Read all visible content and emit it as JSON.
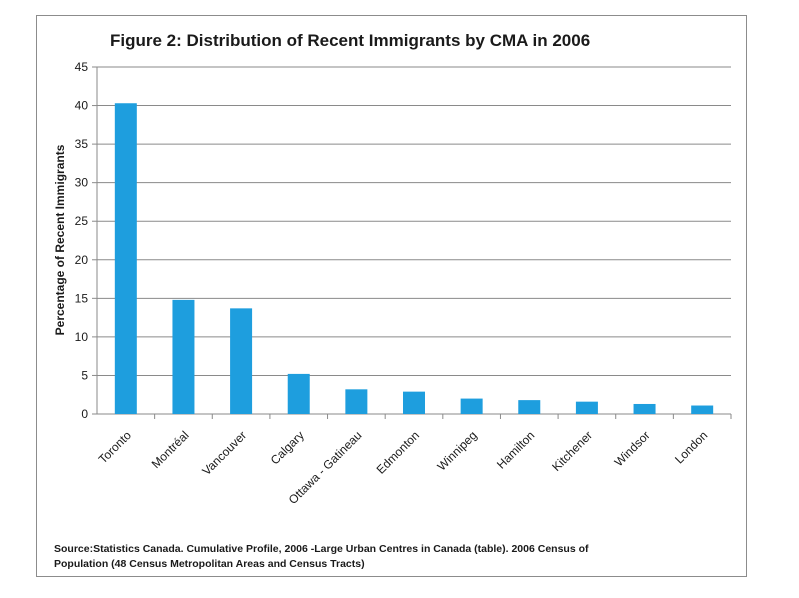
{
  "chart_data": {
    "type": "bar",
    "title": "Figure 2: Distribution of Recent Immigrants by CMA in 2006",
    "xlabel": "",
    "ylabel": "Percentage of Recent Immigrants",
    "ylim": [
      0,
      45
    ],
    "yticks": [
      0,
      5,
      10,
      15,
      20,
      25,
      30,
      35,
      40,
      45
    ],
    "grid": true,
    "bar_color": "#1e9ede",
    "categories": [
      "Toronto",
      "Montréal",
      "Vancouver",
      "Calgary",
      "Ottawa - Gatineau",
      "Edmonton",
      "Winnipeg",
      "Hamilton",
      "Kitchener",
      "Windsor",
      "London"
    ],
    "values": [
      40.3,
      14.8,
      13.7,
      5.2,
      3.2,
      2.9,
      2.0,
      1.8,
      1.6,
      1.3,
      1.1
    ]
  },
  "source": {
    "line1": "Source:Statistics Canada.  Cumulative Profile, 2006 -Large Urban Centres in Canada (table). 2006 Census of",
    "line2": "Population (48 Census Metropolitan Areas and Census Tracts)"
  }
}
